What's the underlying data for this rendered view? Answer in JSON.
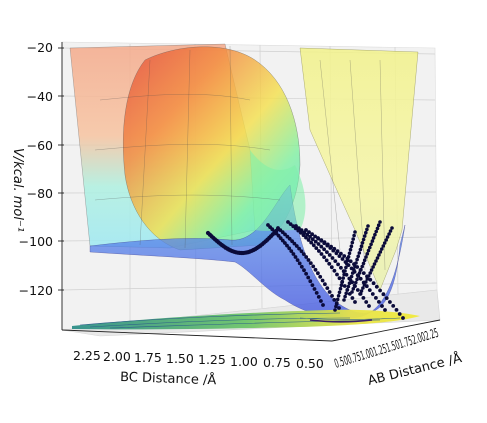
{
  "chart_data": {
    "type": "surface3d",
    "zlabel": "V/kcal. mol⁻¹",
    "xlabel": "BC Distance /Å",
    "ylabel": "AB Distance /Å",
    "z_ticks": [
      "−20",
      "−40",
      "−60",
      "−80",
      "−100",
      "−120"
    ],
    "bc_ticks": [
      "2.25",
      "2.00",
      "1.75",
      "1.50",
      "1.25",
      "1.00",
      "0.75",
      "0.50"
    ],
    "ab_ticks": [
      "0.50",
      "0.75",
      "1.00",
      "1.25",
      "1.50",
      "1.75",
      "2.00",
      "2.25"
    ],
    "ab_ticks_rendered": "0.500.751.001.251.501.752.002.25",
    "zlim": [
      -135,
      -18
    ],
    "grid": true,
    "colormap": "jet",
    "projected_contours": "viridis",
    "trajectory_color": "#0b0b3a"
  }
}
